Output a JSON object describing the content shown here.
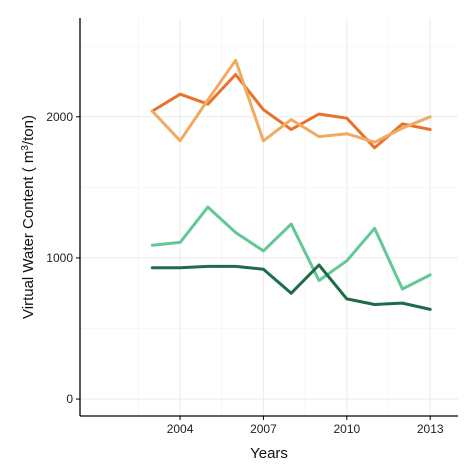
{
  "chart_data": {
    "type": "line",
    "xlabel": "Years",
    "ylabel_prefix": "Virtual Water Content ( m",
    "ylabel_sup": "3",
    "ylabel_suffix": "/ton)",
    "x": [
      2003,
      2004,
      2005,
      2006,
      2007,
      2008,
      2009,
      2010,
      2011,
      2012,
      2013
    ],
    "xlim": [
      2000.4,
      2014
    ],
    "ylim": [
      -120,
      2700
    ],
    "xticks": [
      2004,
      2007,
      2010,
      2013
    ],
    "xtick_labels": [
      "2004",
      "2007",
      "2010",
      "2013"
    ],
    "yticks": [
      0,
      1000,
      2000
    ],
    "ytick_labels": [
      "0",
      "1000",
      "2000"
    ],
    "grid": true,
    "legend": "none",
    "series": [
      {
        "color": "#e8722c",
        "values": [
          2040,
          2160,
          2090,
          2300,
          2050,
          1910,
          2020,
          1990,
          1780,
          1950,
          1910
        ]
      },
      {
        "color": "#f0aa62",
        "values": [
          2040,
          1830,
          2120,
          2400,
          1830,
          1980,
          1860,
          1880,
          1820,
          1920,
          2000
        ]
      },
      {
        "color": "#62c896",
        "values": [
          1090,
          1110,
          1360,
          1180,
          1050,
          1240,
          840,
          980,
          1210,
          780,
          880
        ]
      },
      {
        "color": "#1e6b48",
        "values": [
          930,
          930,
          940,
          940,
          920,
          750,
          950,
          710,
          670,
          680,
          635
        ]
      }
    ]
  }
}
